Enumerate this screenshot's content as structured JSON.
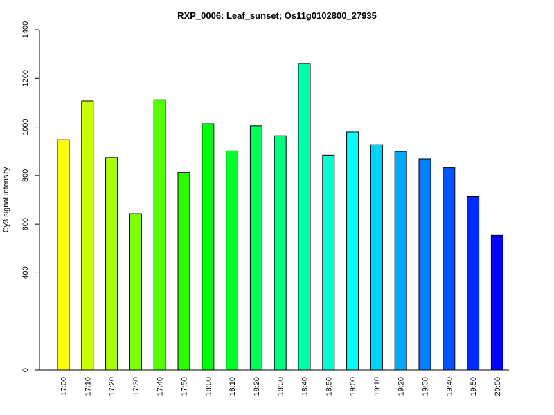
{
  "chart_data": {
    "type": "bar",
    "title": "RXP_0006: Leaf_sunset; Os11g0102800_27935",
    "xlabel": "",
    "ylabel": "Cy3 signal intensity",
    "ylim": [
      0,
      1400
    ],
    "yticks": [
      0,
      400,
      600,
      800,
      1000,
      1200,
      1400
    ],
    "grid": false,
    "categories": [
      "17:00",
      "17:10",
      "17:20",
      "17:30",
      "17:40",
      "17:50",
      "18:00",
      "18:10",
      "18:20",
      "18:30",
      "18:40",
      "18:50",
      "19:00",
      "19:10",
      "19:20",
      "19:30",
      "19:40",
      "19:50",
      "20:00"
    ],
    "values": [
      947,
      1107,
      874,
      643,
      1112,
      813,
      1013,
      901,
      1005,
      964,
      1261,
      884,
      979,
      927,
      899,
      868,
      832,
      713,
      554
    ],
    "colors": [
      "#ffff00",
      "#ccff00",
      "#aaff00",
      "#80ff00",
      "#55ff00",
      "#2bff00",
      "#00ff0b",
      "#00ff2b",
      "#00ff55",
      "#00ff80",
      "#00ffaa",
      "#00ffd4",
      "#00ffff",
      "#00d4ff",
      "#00aaff",
      "#0080ff",
      "#0055ff",
      "#002bff",
      "#0000ff"
    ]
  }
}
